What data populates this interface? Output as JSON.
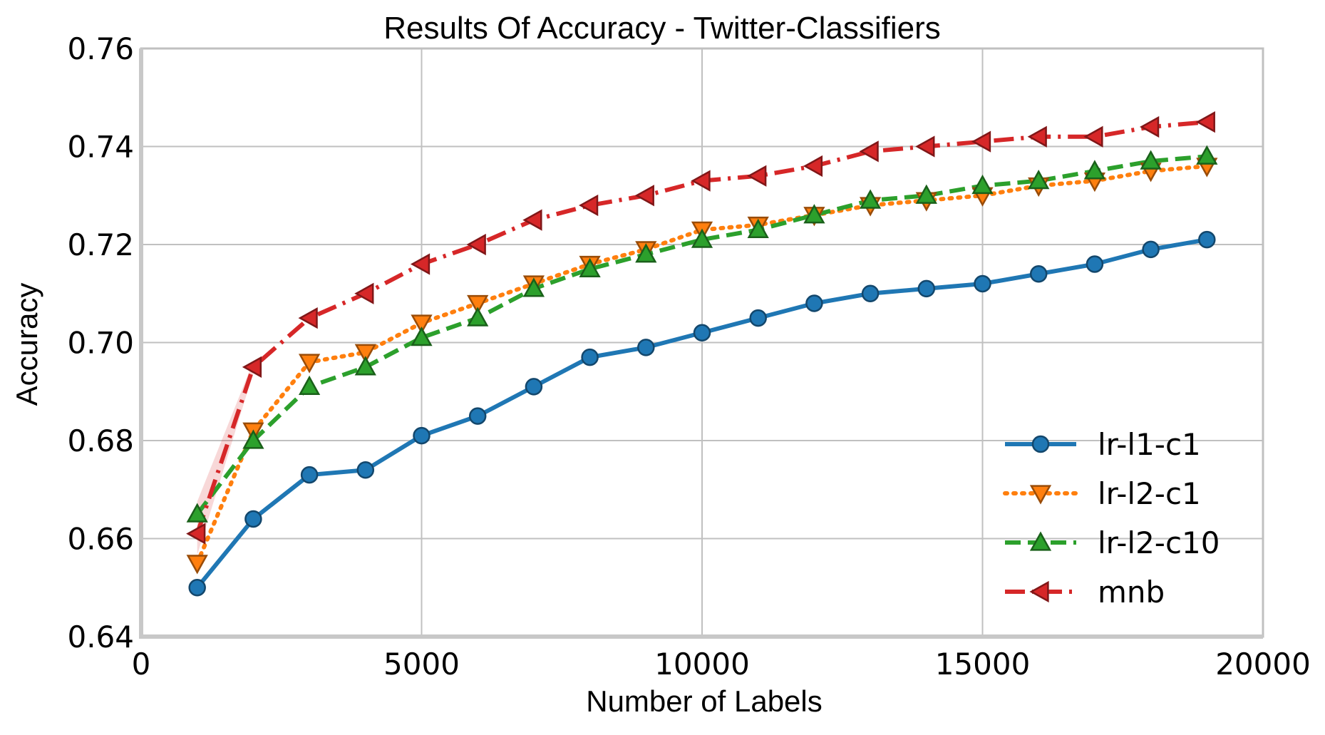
{
  "chart_data": {
    "type": "line",
    "title": "Results Of Accuracy - Twitter-Classifiers",
    "xlabel": "Number of Labels",
    "ylabel": "Accuracy",
    "xlim": [
      0,
      20000
    ],
    "ylim": [
      0.64,
      0.76
    ],
    "xticks": [
      0,
      5000,
      10000,
      15000,
      20000
    ],
    "xtick_labels": [
      "0",
      "5000",
      "10000",
      "15000",
      "20000"
    ],
    "yticks": [
      0.64,
      0.66,
      0.68,
      0.7,
      0.72,
      0.74,
      0.76
    ],
    "ytick_labels": [
      "0.64",
      "0.66",
      "0.68",
      "0.70",
      "0.72",
      "0.74",
      "0.76"
    ],
    "grid": true,
    "legend_position": "lower-right",
    "x": [
      1000,
      2000,
      3000,
      4000,
      5000,
      6000,
      7000,
      8000,
      9000,
      10000,
      11000,
      12000,
      13000,
      14000,
      15000,
      16000,
      17000,
      18000,
      19000
    ],
    "series": [
      {
        "name": "lr-l1-c1",
        "color": "#1f77b4",
        "linestyle": "solid",
        "marker": "circle",
        "values": [
          0.65,
          0.664,
          0.673,
          0.674,
          0.681,
          0.685,
          0.691,
          0.697,
          0.699,
          0.702,
          0.705,
          0.708,
          0.71,
          0.711,
          0.712,
          0.714,
          0.716,
          0.719,
          0.721
        ]
      },
      {
        "name": "lr-l2-c1",
        "color": "#ff7f0e",
        "linestyle": "dotted",
        "marker": "triangle-down",
        "values": [
          0.655,
          0.682,
          0.696,
          0.698,
          0.704,
          0.708,
          0.712,
          0.716,
          0.719,
          0.723,
          0.724,
          0.726,
          0.728,
          0.729,
          0.73,
          0.732,
          0.733,
          0.735,
          0.736
        ]
      },
      {
        "name": "lr-l2-c10",
        "color": "#2ca02c",
        "linestyle": "dashed",
        "marker": "triangle-up",
        "values": [
          0.665,
          0.68,
          0.691,
          0.695,
          0.701,
          0.705,
          0.711,
          0.715,
          0.718,
          0.721,
          0.723,
          0.726,
          0.729,
          0.73,
          0.732,
          0.733,
          0.735,
          0.737,
          0.738
        ]
      },
      {
        "name": "mnb",
        "color": "#d62728",
        "linestyle": "dashdot",
        "marker": "triangle-left",
        "values": [
          0.661,
          0.695,
          0.705,
          0.71,
          0.716,
          0.72,
          0.725,
          0.728,
          0.73,
          0.733,
          0.734,
          0.736,
          0.739,
          0.74,
          0.741,
          0.742,
          0.742,
          0.744,
          0.745
        ]
      }
    ]
  }
}
